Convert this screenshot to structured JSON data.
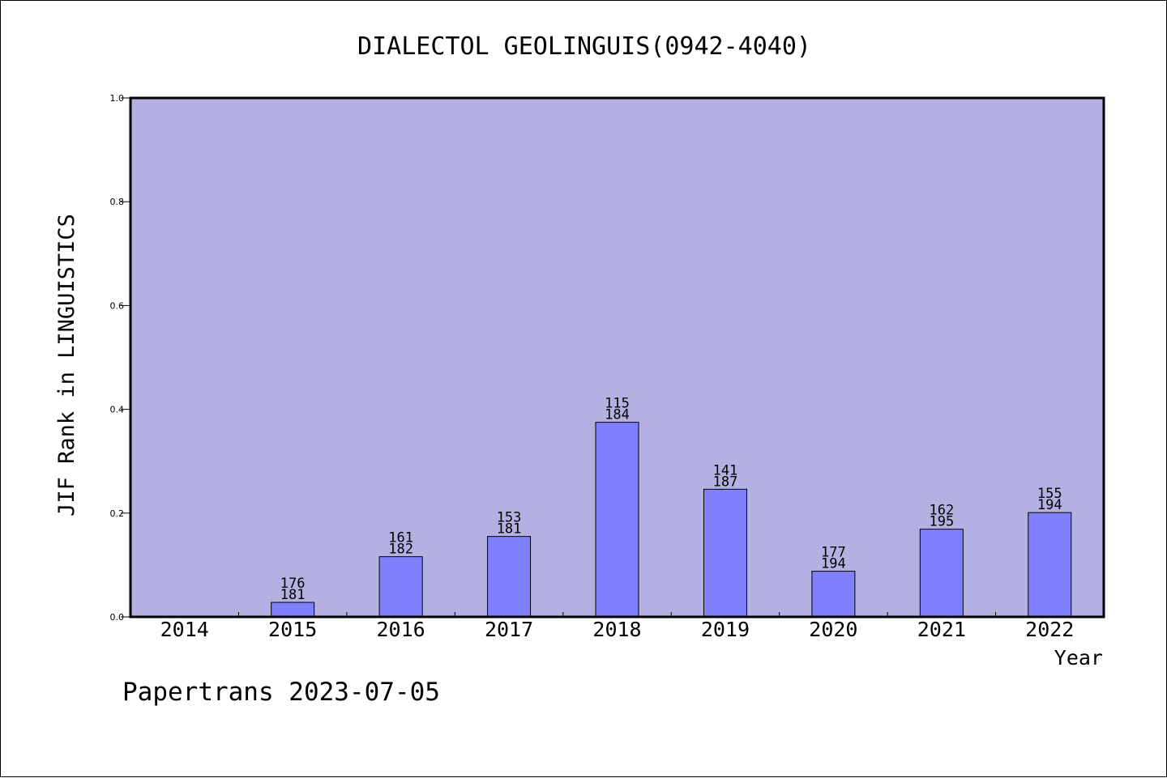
{
  "chart_data": {
    "type": "bar",
    "title": "DIALECTOL GEOLINGUIS(0942-4040)",
    "xlabel": "Year",
    "ylabel": "JIF Rank in LINGUISTICS",
    "footer": "Papertrans 2023-07-05",
    "ylim": [
      0,
      1.0
    ],
    "yticks": [
      "0.0",
      "0.2",
      "0.4",
      "0.6",
      "0.8",
      "1.0"
    ],
    "categories": [
      "2014",
      "2015",
      "2016",
      "2017",
      "2018",
      "2019",
      "2020",
      "2021",
      "2022"
    ],
    "values": [
      null,
      0.028,
      0.116,
      0.155,
      0.375,
      0.246,
      0.088,
      0.169,
      0.201
    ],
    "bar_labels": [
      null,
      {
        "rank": "176",
        "total": "181"
      },
      {
        "rank": "161",
        "total": "182"
      },
      {
        "rank": "153",
        "total": "181"
      },
      {
        "rank": "115",
        "total": "184"
      },
      {
        "rank": "141",
        "total": "187"
      },
      {
        "rank": "177",
        "total": "194"
      },
      {
        "rank": "162",
        "total": "195"
      },
      {
        "rank": "155",
        "total": "194"
      }
    ],
    "grid": false,
    "colors": {
      "plot_background": "#b5b0e2",
      "bar_fill": "#8080ff",
      "bar_stroke": "#000000"
    }
  }
}
